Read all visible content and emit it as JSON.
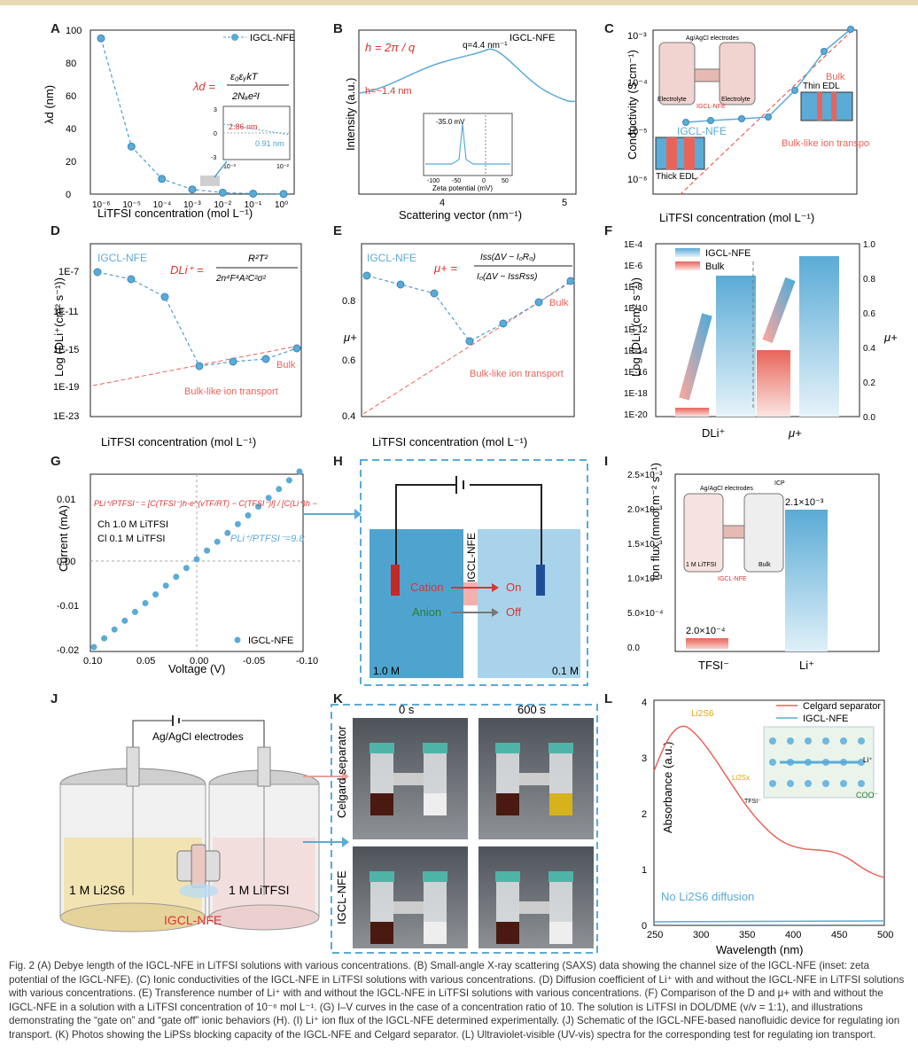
{
  "panels": {
    "A": "A",
    "B": "B",
    "C": "C",
    "D": "D",
    "E": "E",
    "F": "F",
    "G": "G",
    "H": "H",
    "I": "I",
    "J": "J",
    "K": "K",
    "L": "L"
  },
  "colors": {
    "blue": "#5aabd6",
    "red": "#e8645a",
    "dashblue": "#4f9fd0"
  },
  "chart_data": [
    {
      "id": "A",
      "type": "line",
      "legend": "IGCL-NFE",
      "xlabel": "LiTFSI concentration (mol L⁻¹)",
      "ylabel": "λd (nm)",
      "x": [
        1e-06,
        1e-05,
        0.0001,
        0.001,
        0.01,
        0.1,
        1
      ],
      "values": [
        95,
        29,
        9.3,
        2.86,
        0.91,
        0.3,
        0.1
      ],
      "yticks": [
        "0",
        "20",
        "40",
        "60",
        "80",
        "100"
      ],
      "xticks": [
        "10⁻⁶",
        "10⁻⁵",
        "10⁻⁴",
        "10⁻³",
        "10⁻²",
        "10⁻¹",
        "10⁰"
      ],
      "inset": {
        "label1": "2.86 nm",
        "label2": "0.91 nm",
        "yticks": [
          "3",
          "0",
          "-3"
        ],
        "xticks": [
          "10⁻³",
          "10⁻²"
        ]
      },
      "formula_lhs": "λd =",
      "formula_num": "ε₀εᵧkT",
      "formula_den": "2Nₐe²I"
    },
    {
      "id": "B",
      "type": "line",
      "legend": "IGCL-NFE",
      "xlabel": "Scattering vector (nm⁻¹)",
      "ylabel": "Intensity (a.u.)",
      "peak": "q=4.4 nm⁻¹",
      "hlabel": "h=~1.4 nm",
      "formula": "h = 2π / q",
      "xticks": [
        "4",
        "5"
      ],
      "inset": {
        "label": "-35.0 mV",
        "xlabel": "Zeta potential (mV)",
        "xticks": [
          "-100",
          "-50",
          "0",
          "50"
        ]
      }
    },
    {
      "id": "C",
      "type": "line",
      "xlabel": "LiTFSI concentration (mol L⁻¹)",
      "ylabel": "Conductivity (S cm⁻¹)",
      "x": [
        1e-06,
        1e-05,
        0.0001,
        0.001,
        0.01,
        0.1,
        1
      ],
      "values": [
        1e-05,
        1.1e-05,
        1.2e-05,
        1.3e-05,
        6e-05,
        0.0005,
        0.0018
      ],
      "yticks": [
        "10⁻³",
        "10⁻⁴",
        "10⁻⁵",
        "10⁻⁶"
      ],
      "labels": {
        "igcl": "IGCL-NFE",
        "bulk": "Bulk",
        "bulklike": "Bulk-like\nion transport",
        "thin": "Thin EDL",
        "thick": "Thick EDL",
        "electrodes": "Ag/AgCl electrodes",
        "electrolyte": "Electrolyte",
        "membrane": "IGCL-NFE"
      }
    },
    {
      "id": "D",
      "type": "line",
      "xlabel": "LiTFSI concentration (mol L⁻¹)",
      "ylabel": "Log (DLi⁺(cm² s⁻¹))",
      "yticks": [
        "1E-7",
        "1E-11",
        "1E-15",
        "1E-19",
        "1E-23"
      ],
      "labels": {
        "igcl": "IGCL-NFE",
        "bulk": "Bulk",
        "bulklike": "Bulk-like ion transport"
      },
      "formula_lhs": "DLi⁺ =",
      "formula_num": "R²T²",
      "formula_den": "2n⁴F⁴A²C²σ²"
    },
    {
      "id": "E",
      "type": "line",
      "xlabel": "LiTFSI concentration (mol L⁻¹)",
      "ylabel": "μ+",
      "yticks": [
        "0.8",
        "0.6",
        "0.4"
      ],
      "labels": {
        "igcl": "IGCL-NFE",
        "bulk": "Bulk",
        "bulklike": "Bulk-like ion transport"
      },
      "formula_lhs": "μ+ =",
      "formula_num": "Iss(ΔV − I₀R₀)",
      "formula_den": "I₀(ΔV − IssRss)"
    },
    {
      "id": "F",
      "type": "bar",
      "categories": [
        "DLi⁺",
        "μ+"
      ],
      "series": [
        {
          "name": "IGCL-NFE",
          "values": [
            "1E-7 (log)",
            "0.95"
          ]
        },
        {
          "name": "Bulk",
          "values": [
            "1E-19 (log)",
            "0.40"
          ]
        }
      ],
      "yticks_left": [
        "1E-4",
        "1E-6",
        "1E-8",
        "1E-10",
        "1E-12",
        "1E-14",
        "1E-16",
        "1E-18",
        "1E-20"
      ],
      "yticks_right": [
        "1.0",
        "0.8",
        "0.6",
        "0.4",
        "0.2",
        "0.0"
      ],
      "ylabel": "Log (DLi⁺(cm² s⁻¹))",
      "ylabel_right": "μ+"
    },
    {
      "id": "G",
      "type": "scatter",
      "legend": "IGCL-NFE",
      "xlabel": "Voltage (V)",
      "ylabel": "Current (mA)",
      "xticks": [
        "0.10",
        "0.05",
        "0.00",
        "-0.05",
        "-0.10"
      ],
      "yticks": [
        "0.01",
        "0.00",
        "-0.01",
        "-0.02"
      ],
      "labels": {
        "ch": "Ch  1.0 M LiTFSI",
        "cl": "Cl  0.1 M LiTFSI",
        "ratio": "PLi⁺/PTFSI⁻=9.8",
        "formula": "PLi⁺/PTFSI⁻ = [C(TFSI⁻)h·e^(vTF/RT) − C(TFSI⁻)l] / [C(Li⁺)h − C(Li⁺)l·e^(vTF/RT)]"
      }
    },
    {
      "id": "I",
      "type": "bar",
      "categories": [
        "TFSI⁻",
        "Li⁺"
      ],
      "values": [
        0.0002,
        0.0021
      ],
      "value_labels": [
        "2.0×10⁻⁴",
        "2.1×10⁻³"
      ],
      "ylabel": "Ion flux (mmol m⁻² s⁻¹)",
      "yticks": [
        "2.5×10⁻³",
        "2.0×10⁻³",
        "1.5×10⁻³",
        "1.0×10⁻³",
        "5.0×10⁻⁴",
        "0.0"
      ],
      "labels": {
        "electrodes": "Ag/AgCl electrodes",
        "icp": "ICP",
        "left": "1 M LiTFSI",
        "right": "Bulk",
        "membrane": "IGCL-NFE"
      }
    },
    {
      "id": "L",
      "type": "line",
      "xlabel": "Wavelength (nm)",
      "ylabel": "Absorbance (a.u.)",
      "xticks": [
        "250",
        "300",
        "350",
        "400",
        "450",
        "500"
      ],
      "yticks": [
        "0",
        "1",
        "2",
        "3",
        "4"
      ],
      "series": [
        {
          "name": "Celgard separator",
          "color": "#e8645a"
        },
        {
          "name": "IGCL-NFE",
          "color": "#5aabd6"
        }
      ],
      "labels": {
        "li2s6": "Li2S6",
        "nodiff": "No Li2S6 diffusion",
        "lips": "Li2Sx",
        "tfsi": "TFSI⁻",
        "li": "Li⁺",
        "coo": "COO⁻"
      }
    }
  ],
  "H": {
    "nfe": "IGCL-NFE",
    "cation": "Cation",
    "anion": "Anion",
    "on": "On",
    "off": "Off",
    "left": "1.0 M",
    "right": "0.1 M"
  },
  "J": {
    "electrodes": "Ag/AgCl electrodes",
    "left": "1 M Li2S6",
    "right": "1 M LiTFSI",
    "membrane": "IGCL-NFE"
  },
  "K": {
    "t0": "0 s",
    "t600": "600 s",
    "row1": "Celgard separator",
    "row2": "IGCL-NFE"
  },
  "caption": "Fig. 2  (A) Debye length of the IGCL-NFE in LiTFSI solutions with various concentrations. (B) Small-angle X-ray scattering (SAXS) data showing the channel size of the IGCL-NFE (inset: zeta potential of the IGCL-NFE). (C) Ionic conductivities of the IGCL-NFE in LiTFSI solutions with various concentrations. (D) Diffusion coefficient of Li⁺ with and without the IGCL-NFE in LiTFSI solutions with various concentrations. (E) Transference number of Li⁺ with and without the IGCL-NFE in LiTFSI solutions with various concentrations. (F) Comparison of the D and μ+ with and without the IGCL-NFE in a solution with a LiTFSI concentration of 10⁻⁶ mol L⁻¹. (G) I–V curves in the case of a concentration ratio of 10. The solution is LiTFSI in DOL/DME (v/v = 1:1), and illustrations demonstrating the “gate on” and “gate off” ionic behaviors (H). (I) Li⁺ ion flux of the IGCL-NFE determined experimentally. (J) Schematic of the IGCL-NFE-based nanofluidic device for regulating ion transport. (K) Photos showing the LiPSs blocking capacity of the IGCL-NFE and Celgard separator. (L) Ultraviolet-visible (UV-vis) spectra for the corresponding test for regulating ion transport."
}
